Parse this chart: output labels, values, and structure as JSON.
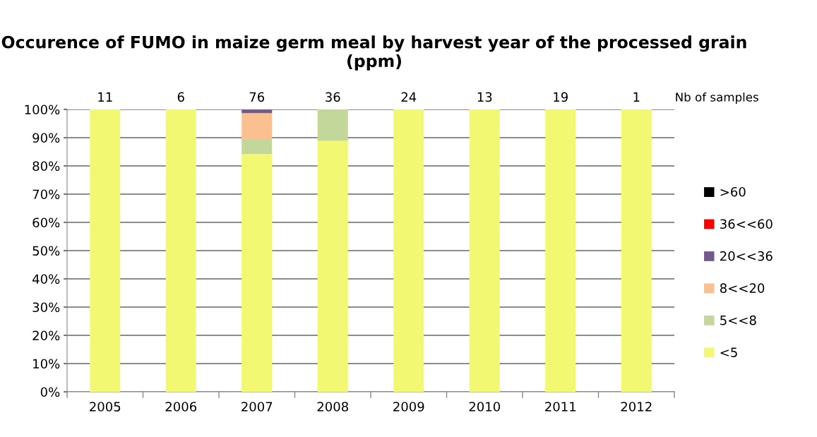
{
  "chart_data": {
    "type": "bar",
    "stacked": true,
    "title": "Occurence of FUMO in maize germ meal by harvest year of the processed grain (ppm)",
    "categories": [
      "2005",
      "2006",
      "2007",
      "2008",
      "2009",
      "2010",
      "2011",
      "2012"
    ],
    "series": [
      {
        "name": "<5",
        "color": "#f2f871",
        "values": [
          100,
          100,
          84.2,
          88.9,
          100,
          100,
          100,
          100
        ]
      },
      {
        "name": "5<<8",
        "color": "#c4d79b",
        "values": [
          0,
          0,
          5.3,
          11.1,
          0,
          0,
          0,
          0
        ]
      },
      {
        "name": "8<<20",
        "color": "#fac090",
        "values": [
          0,
          0,
          9.2,
          0,
          0,
          0,
          0,
          0
        ]
      },
      {
        "name": "20<<36",
        "color": "#72598f",
        "values": [
          0,
          0,
          1.3,
          0,
          0,
          0,
          0,
          0
        ]
      },
      {
        "name": "36<<60",
        "color": "#ff0000",
        "values": [
          0,
          0,
          0,
          0,
          0,
          0,
          0,
          0
        ]
      },
      {
        "name": ">60",
        "color": "#000000",
        "values": [
          0,
          0,
          0,
          0,
          0,
          0,
          0,
          0
        ]
      }
    ],
    "ylim": [
      0,
      100
    ],
    "yticks": [
      {
        "value": 0,
        "label": "0%"
      },
      {
        "value": 10,
        "label": "10%"
      },
      {
        "value": 20,
        "label": "20%"
      },
      {
        "value": 30,
        "label": "30%"
      },
      {
        "value": 40,
        "label": "40%"
      },
      {
        "value": 50,
        "label": "50%"
      },
      {
        "value": 60,
        "label": "60%"
      },
      {
        "value": 70,
        "label": "70%"
      },
      {
        "value": 80,
        "label": "80%"
      },
      {
        "value": 90,
        "label": "90%"
      },
      {
        "value": 100,
        "label": "100%"
      }
    ],
    "grid": "y",
    "legend": "right",
    "annotations": [
      "11",
      "6",
      "76",
      "36",
      "24",
      "13",
      "19",
      "1",
      "Nb of samples"
    ]
  }
}
